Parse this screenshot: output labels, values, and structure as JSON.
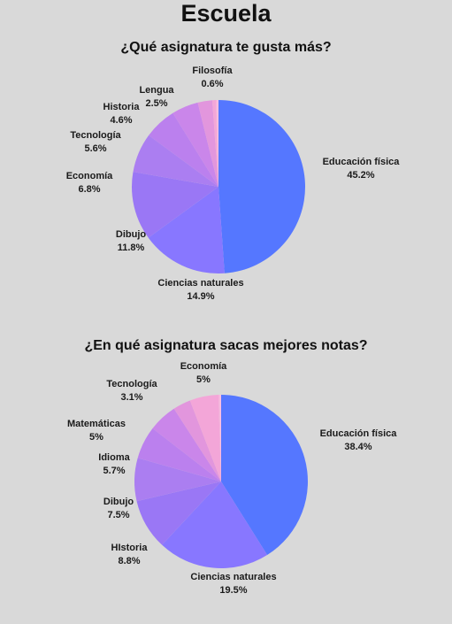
{
  "page": {
    "title": "Escuela"
  },
  "chart_data": [
    {
      "type": "pie",
      "title": "¿Qué asignatura te gusta más?",
      "categories": [
        "Educación física",
        "Ciencias naturales",
        "Dibujo",
        "Economía",
        "Tecnología",
        "Historia",
        "Lengua",
        "Filosofía"
      ],
      "values": [
        45.2,
        14.9,
        11.8,
        6.8,
        5.6,
        4.6,
        2.5,
        0.6
      ],
      "labels": [
        "45.2%",
        "14.9%",
        "11.8%",
        "6.8%",
        "5.6%",
        "4.6%",
        "2.5%",
        "0.6%"
      ],
      "colors": [
        "#5577ff",
        "#8877ff",
        "#9a77f5",
        "#ab7ef1",
        "#bb80ee",
        "#ca86ea",
        "#e296dd",
        "#f3a6d8"
      ],
      "extra_slice_colors": [
        "#f7b2dc",
        "#fbc0e2"
      ],
      "start_angle_deg": 0,
      "direction": "clockwise"
    },
    {
      "type": "pie",
      "title": "¿En qué asignatura sacas mejores notas?",
      "categories": [
        "Educación física",
        "Ciencias naturales",
        "HIstoria",
        "Dibujo",
        "Idioma",
        "Matemáticas",
        "Tecnología",
        "Economía"
      ],
      "values": [
        38.4,
        19.5,
        8.8,
        7.5,
        5.7,
        5,
        3.1,
        5
      ],
      "labels": [
        "38.4%",
        "19.5%",
        "8.8%",
        "7.5%",
        "5.7%",
        "5%",
        "3.1%",
        "5%"
      ],
      "colors": [
        "#5577ff",
        "#8877ff",
        "#9a77f5",
        "#ab7ef1",
        "#bb80ee",
        "#ca86ea",
        "#e296dd",
        "#f3a6d8"
      ],
      "extra_slice_colors": [
        "#f7b2dc",
        "#fbc0e2"
      ],
      "start_angle_deg": 0,
      "direction": "clockwise"
    }
  ]
}
